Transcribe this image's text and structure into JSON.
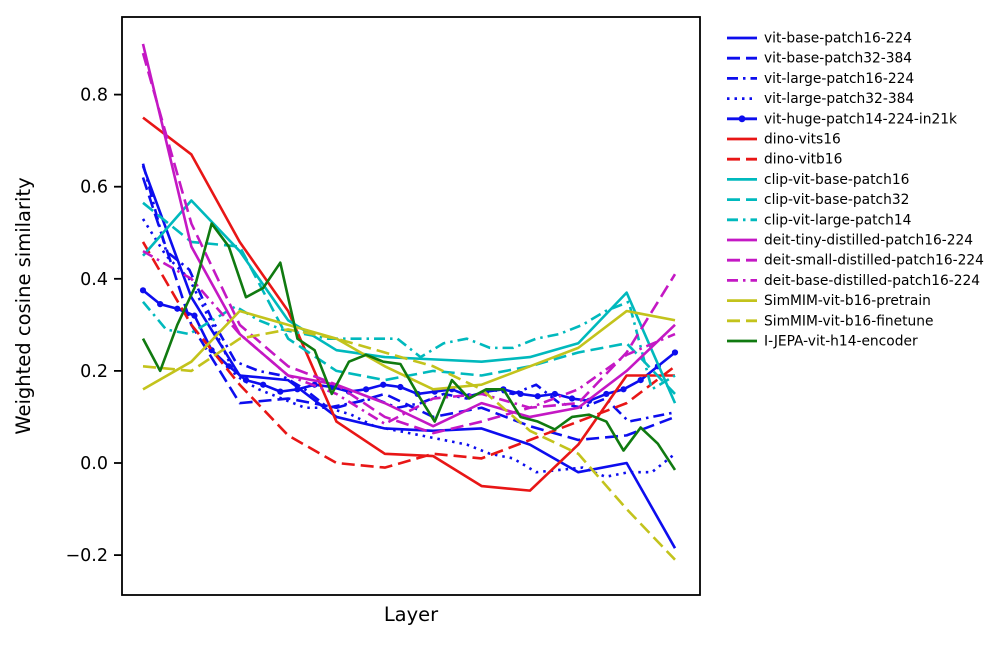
{
  "figure": {
    "background": "#ffffff",
    "frame_color": "#000000"
  },
  "chart_data": {
    "type": "line",
    "title": "",
    "xlabel": "Layer",
    "ylabel": "Weighted cosine similarity",
    "grid": false,
    "legend_position": "outside-right",
    "ylim": [
      -0.28,
      0.97
    ],
    "x_note": "no x tick labels shown; series plotted over normalized layer depth 0..1",
    "yticks": [
      {
        "value": 0.8,
        "label": "0.8"
      },
      {
        "value": 0.6,
        "label": "0.6"
      },
      {
        "value": 0.4,
        "label": "0.4"
      },
      {
        "value": 0.2,
        "label": "0.2"
      },
      {
        "value": 0.0,
        "label": "0.0"
      },
      {
        "value": -0.2,
        "label": "−0.2"
      }
    ],
    "palette": {
      "blue": "#0d0dee",
      "red": "#e81616",
      "cyan": "#00b9bd",
      "magenta": "#c418c4",
      "yellow": "#c3c31c",
      "green": "#107a10"
    },
    "series": [
      {
        "name": "vit-base-patch16-224",
        "color": "blue",
        "style": "solid",
        "marker": "none",
        "values": [
          0.645,
          0.36,
          0.19,
          0.18,
          0.1,
          0.075,
          0.07,
          0.075,
          0.04,
          -0.02,
          0.0,
          -0.185
        ]
      },
      {
        "name": "vit-base-patch32-384",
        "color": "blue",
        "style": "dashed",
        "marker": "none",
        "values": [
          0.62,
          0.3,
          0.13,
          0.14,
          0.12,
          0.15,
          0.1,
          0.12,
          0.08,
          0.05,
          0.06,
          0.1
        ]
      },
      {
        "name": "vit-large-patch16-224",
        "color": "blue",
        "style": "dashdot",
        "marker": "none",
        "values": [
          0.65,
          0.46,
          0.42,
          0.31,
          0.22,
          0.2,
          0.19,
          0.16,
          0.12,
          0.13,
          0.14,
          0.12,
          0.13,
          0.15,
          0.14,
          0.16,
          0.15,
          0.17,
          0.13,
          0.12,
          0.14,
          0.09,
          0.1,
          0.11
        ]
      },
      {
        "name": "vit-large-patch32-384",
        "color": "blue",
        "style": "dotted",
        "marker": "none",
        "values": [
          0.53,
          0.45,
          0.4,
          0.3,
          0.19,
          0.16,
          0.14,
          0.12,
          0.12,
          0.105,
          0.08,
          0.07,
          0.06,
          0.05,
          0.04,
          0.02,
          0.01,
          -0.02,
          -0.015,
          -0.01,
          -0.03,
          -0.02,
          -0.02,
          0.02
        ]
      },
      {
        "name": "vit-huge-patch14-224-in21k",
        "color": "blue",
        "style": "solid",
        "marker": "circle",
        "values": [
          0.375,
          0.345,
          0.335,
          0.32,
          0.245,
          0.21,
          0.18,
          0.17,
          0.155,
          0.16,
          0.17,
          0.165,
          0.155,
          0.16,
          0.17,
          0.165,
          0.15,
          0.155,
          0.16,
          0.145,
          0.155,
          0.16,
          0.15,
          0.145,
          0.15,
          0.14,
          0.135,
          0.15,
          0.16,
          0.18,
          0.21,
          0.24
        ]
      },
      {
        "name": "dino-vits16",
        "color": "red",
        "style": "solid",
        "marker": "none",
        "values": [
          0.75,
          0.67,
          0.48,
          0.33,
          0.09,
          0.02,
          0.015,
          -0.05,
          -0.06,
          0.04,
          0.19,
          0.19
        ]
      },
      {
        "name": "dino-vitb16",
        "color": "red",
        "style": "dashed",
        "marker": "none",
        "values": [
          0.48,
          0.3,
          0.17,
          0.06,
          0.0,
          -0.01,
          0.02,
          0.01,
          0.05,
          0.09,
          0.13,
          0.21
        ]
      },
      {
        "name": "clip-vit-base-patch16",
        "color": "cyan",
        "style": "solid",
        "marker": "none",
        "values": [
          0.45,
          0.57,
          0.46,
          0.31,
          0.245,
          0.23,
          0.225,
          0.22,
          0.23,
          0.26,
          0.37,
          0.13
        ]
      },
      {
        "name": "clip-vit-base-patch32",
        "color": "cyan",
        "style": "dashed",
        "marker": "none",
        "values": [
          0.565,
          0.48,
          0.47,
          0.27,
          0.2,
          0.18,
          0.2,
          0.19,
          0.21,
          0.24,
          0.26,
          0.15
        ]
      },
      {
        "name": "clip-vit-large-patch14",
        "color": "cyan",
        "style": "dashdot",
        "marker": "none",
        "values": [
          0.35,
          0.29,
          0.28,
          0.31,
          0.34,
          0.31,
          0.29,
          0.28,
          0.27,
          0.27,
          0.27,
          0.27,
          0.23,
          0.26,
          0.27,
          0.25,
          0.25,
          0.27,
          0.28,
          0.3,
          0.33,
          0.35,
          0.16,
          0.19
        ]
      },
      {
        "name": "deit-tiny-distilled-patch16-224",
        "color": "magenta",
        "style": "solid",
        "marker": "none",
        "values": [
          0.91,
          0.47,
          0.28,
          0.19,
          0.17,
          0.13,
          0.08,
          0.13,
          0.1,
          0.12,
          0.2,
          0.3
        ]
      },
      {
        "name": "deit-small-distilled-patch16-224",
        "color": "magenta",
        "style": "dashed",
        "marker": "none",
        "values": [
          0.89,
          0.52,
          0.3,
          0.21,
          0.17,
          0.1,
          0.065,
          0.09,
          0.12,
          0.13,
          0.24,
          0.41
        ]
      },
      {
        "name": "deit-base-distilled-patch16-224",
        "color": "magenta",
        "style": "dashdot",
        "marker": "none",
        "values": [
          0.46,
          0.4,
          0.28,
          0.19,
          0.15,
          0.085,
          0.14,
          0.15,
          0.12,
          0.16,
          0.235,
          0.28
        ]
      },
      {
        "name": "SimMIM-vit-b16-pretrain",
        "color": "yellow",
        "style": "solid",
        "marker": "none",
        "values": [
          0.16,
          0.22,
          0.33,
          0.3,
          0.27,
          0.21,
          0.16,
          0.17,
          0.21,
          0.25,
          0.33,
          0.31
        ]
      },
      {
        "name": "SimMIM-vit-b16-finetune",
        "color": "yellow",
        "style": "dashed",
        "marker": "none",
        "values": [
          0.21,
          0.2,
          0.27,
          0.29,
          0.27,
          0.24,
          0.21,
          0.16,
          0.07,
          0.02,
          -0.1,
          -0.21
        ]
      },
      {
        "name": "I-JEPA-vit-h14-encoder",
        "color": "green",
        "style": "solid",
        "marker": "none",
        "values": [
          0.27,
          0.2,
          0.3,
          0.38,
          0.52,
          0.47,
          0.36,
          0.38,
          0.435,
          0.27,
          0.245,
          0.15,
          0.22,
          0.235,
          0.22,
          0.215,
          0.15,
          0.09,
          0.18,
          0.14,
          0.16,
          0.16,
          0.1,
          0.09,
          0.073,
          0.1,
          0.105,
          0.09,
          0.027,
          0.077,
          0.042,
          -0.015
        ]
      }
    ]
  }
}
